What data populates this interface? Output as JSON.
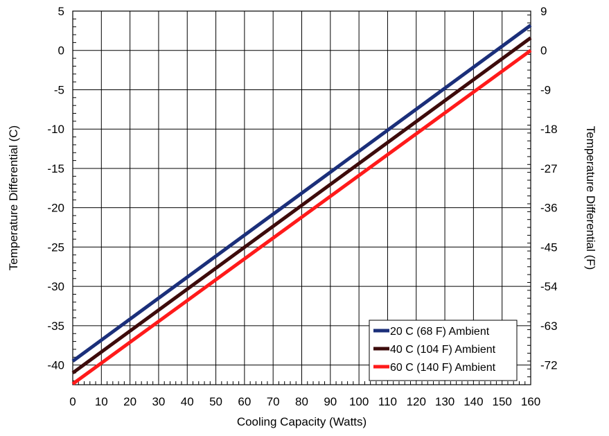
{
  "chart_data": {
    "type": "line",
    "xlabel": "Cooling Capacity (Watts)",
    "ylabel": "Temperature Differential (C)",
    "y2label": "Temperature Differential (F)",
    "xlim": [
      0,
      160
    ],
    "ylim": [
      -42.5,
      5
    ],
    "x_ticks": [
      0,
      10,
      20,
      30,
      40,
      50,
      60,
      70,
      80,
      90,
      100,
      110,
      120,
      130,
      140,
      150,
      160
    ],
    "y_ticks": [
      5,
      0,
      -5,
      -10,
      -15,
      -20,
      -25,
      -30,
      -35,
      -40
    ],
    "y2_ticks": [
      9,
      0,
      -9,
      -18,
      -27,
      -36,
      -45,
      -54,
      -63,
      -72
    ],
    "grid": true,
    "legend_position": "bottom-right",
    "series": [
      {
        "name": "20 C (68 F) Ambient",
        "color": "#1b2f7a",
        "x": [
          0,
          160
        ],
        "y": [
          -39.5,
          3.2
        ]
      },
      {
        "name": "40 C (104 F) Ambient",
        "color": "#3d0b0b",
        "x": [
          0,
          160
        ],
        "y": [
          -41.0,
          1.6
        ]
      },
      {
        "name": "60 C (140 F) Ambient",
        "color": "#ff1a1a",
        "x": [
          0,
          160
        ],
        "y": [
          -42.4,
          0.0
        ]
      }
    ]
  }
}
